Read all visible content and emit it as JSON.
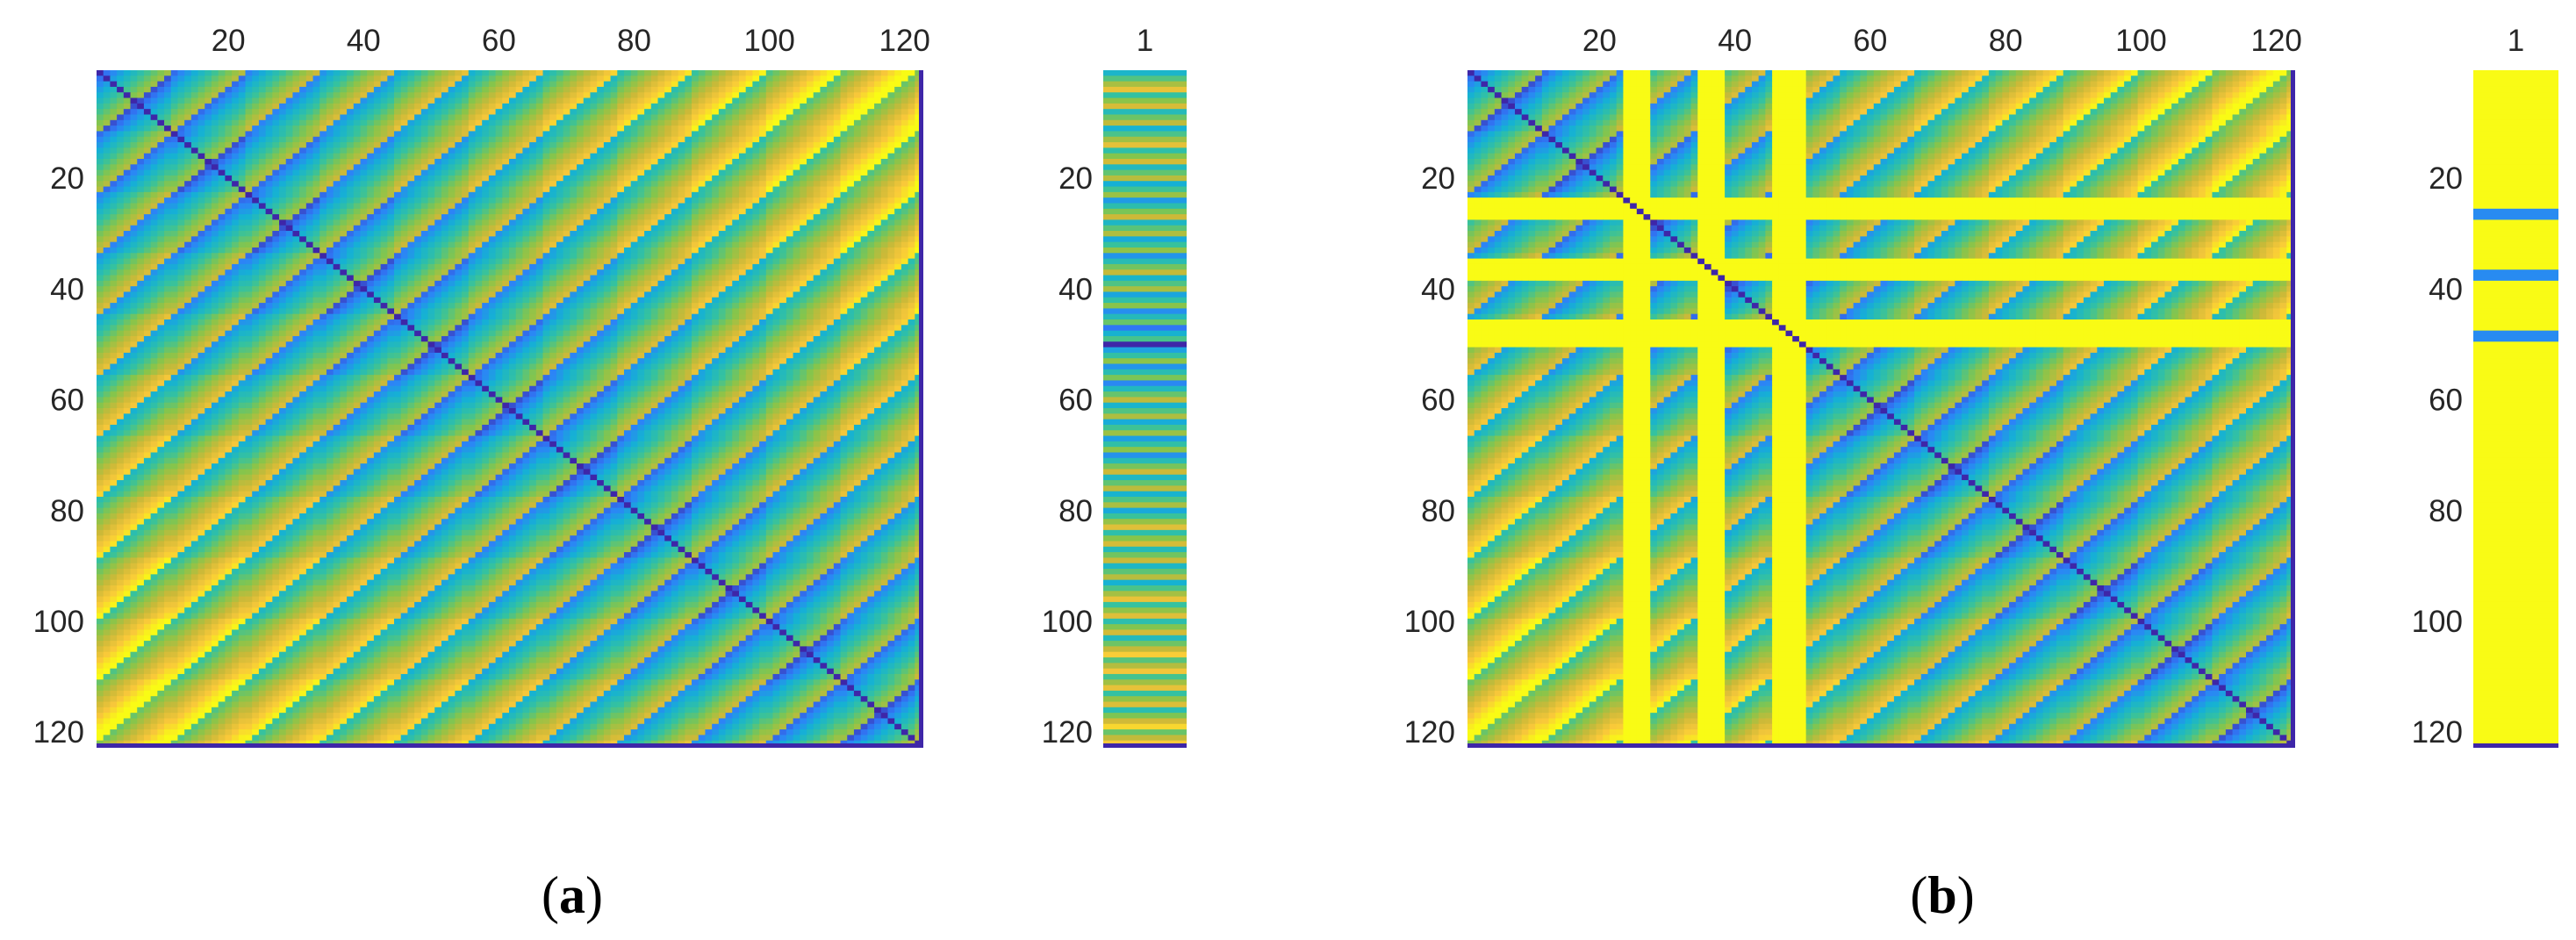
{
  "colormap": [
    "#3e26a8",
    "#2f7efb",
    "#15b1d4",
    "#35c29f",
    "#86c54b",
    "#ccb938",
    "#f9c83a",
    "#f9fb15"
  ],
  "chart_data": [
    {
      "type": "heatmap",
      "panel": "a",
      "caption_label": "a",
      "size": 122,
      "block_size": 11,
      "x_ticks": [
        "20",
        "40",
        "60",
        "80",
        "100",
        "120"
      ],
      "x_tick_values": [
        20,
        40,
        60,
        80,
        100,
        120
      ],
      "y_ticks": [
        "20",
        "40",
        "60",
        "80",
        "100",
        "120"
      ],
      "y_tick_values": [
        20,
        40,
        60,
        80,
        100,
        120
      ],
      "x_range": [
        0.5,
        122.5
      ],
      "y_range": [
        0.5,
        122.5
      ],
      "x_axis_location": "top",
      "y_direction": "reverse",
      "highlight_rows": [],
      "column": {
        "type": "heatmap",
        "x_ticks": [
          "1"
        ],
        "y_ticks": [
          "20",
          "40",
          "60",
          "80",
          "100",
          "120"
        ],
        "y_tick_values": [
          20,
          40,
          60,
          80,
          100,
          120
        ],
        "reference_index": 49,
        "highlight_rows": []
      }
    },
    {
      "type": "heatmap",
      "panel": "b",
      "caption_label": "b",
      "size": 122,
      "block_size": 11,
      "x_ticks": [
        "20",
        "40",
        "60",
        "80",
        "100",
        "120"
      ],
      "x_tick_values": [
        20,
        40,
        60,
        80,
        100,
        120
      ],
      "y_ticks": [
        "20",
        "40",
        "60",
        "80",
        "100",
        "120"
      ],
      "y_tick_values": [
        20,
        40,
        60,
        80,
        100,
        120
      ],
      "x_range": [
        0.5,
        122.5
      ],
      "y_range": [
        0.5,
        122.5
      ],
      "x_axis_location": "top",
      "y_direction": "reverse",
      "highlight_rows": [
        23,
        24,
        25,
        26,
        34,
        35,
        36,
        37,
        45,
        46,
        47,
        48,
        49
      ],
      "column": {
        "type": "heatmap",
        "x_ticks": [
          "1"
        ],
        "y_ticks": [
          "20",
          "40",
          "60",
          "80",
          "100",
          "120"
        ],
        "y_tick_values": [
          20,
          40,
          60,
          80,
          100,
          120
        ],
        "reference_index": 49,
        "highlight_rows": [
          25,
          26,
          36,
          37,
          47,
          48
        ]
      }
    }
  ]
}
